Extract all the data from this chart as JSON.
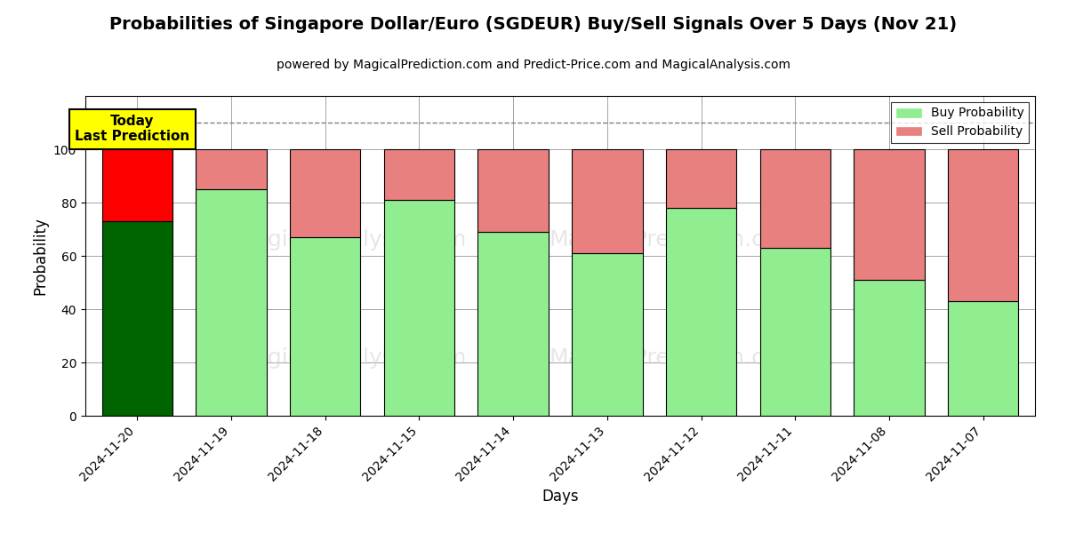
{
  "title": "Probabilities of Singapore Dollar/Euro (SGDEUR) Buy/Sell Signals Over 5 Days (Nov 21)",
  "subtitle": "powered by MagicalPrediction.com and Predict-Price.com and MagicalAnalysis.com",
  "xlabel": "Days",
  "ylabel": "Probability",
  "categories": [
    "2024-11-20",
    "2024-11-19",
    "2024-11-18",
    "2024-11-15",
    "2024-11-14",
    "2024-11-13",
    "2024-11-12",
    "2024-11-11",
    "2024-11-08",
    "2024-11-07"
  ],
  "buy_values": [
    73,
    85,
    67,
    81,
    69,
    61,
    78,
    63,
    51,
    43
  ],
  "sell_values": [
    27,
    15,
    33,
    19,
    31,
    39,
    22,
    37,
    49,
    57
  ],
  "today_buy_color": "#006400",
  "today_sell_color": "#ff0000",
  "buy_color": "#90EE90",
  "sell_color": "#E88080",
  "today_label": "Today\nLast Prediction",
  "legend_buy": "Buy Probability",
  "legend_sell": "Sell Probability",
  "ylim": [
    0,
    120
  ],
  "yticks": [
    0,
    20,
    40,
    60,
    80,
    100
  ],
  "dashed_line_y": 110,
  "bar_width": 0.75,
  "figsize": [
    12,
    6
  ],
  "dpi": 100,
  "title_fontsize": 14,
  "subtitle_fontsize": 10,
  "axis_label_fontsize": 12,
  "tick_fontsize": 10,
  "legend_fontsize": 10
}
